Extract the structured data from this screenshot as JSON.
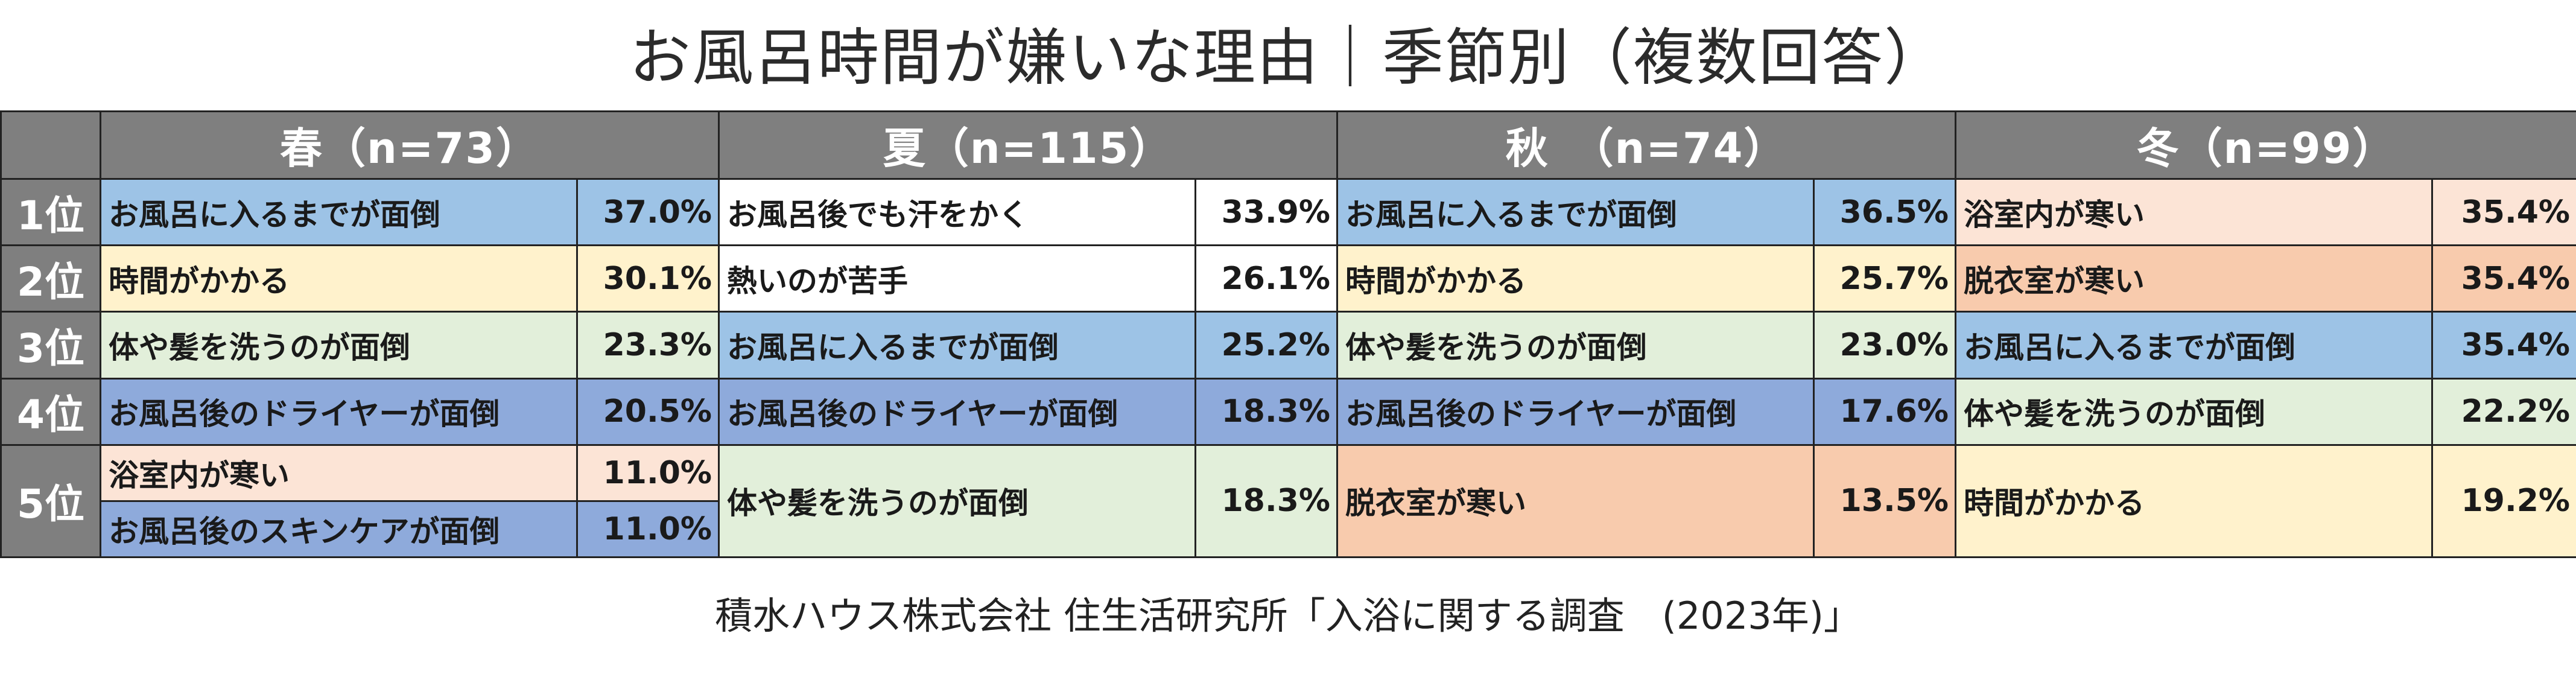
{
  "title": "お風呂時間が嫌いな理由｜季節別（複数回答）",
  "source": "積水ハウス株式会社 住生活研究所「入浴に関する調査　(2023年)」",
  "colors": {
    "header_bg": "#7f7f7f",
    "reason_colors": {
      "お風呂に入るまでが面倒": "#9dc3e6",
      "時間がかかる": "#fff2cc",
      "体や髪を洗うのが面倒": "#e2efda",
      "お風呂後のドライヤーが面倒": "#8eaadb",
      "浴室内が寒い": "#fce4d6",
      "お風呂後のスキンケアが面倒": "#8eaadb",
      "脱衣室が寒い": "#f8cbad",
      "お風呂後でも汗をかく": "#ffffff",
      "熱いのが苦手": "#ffffff"
    }
  },
  "chart_data": {
    "type": "table",
    "rank_labels": [
      "1位",
      "2位",
      "3位",
      "4位",
      "5位"
    ],
    "seasons": [
      {
        "header": "春（n=73）",
        "ranks": [
          [
            {
              "label": "お風呂に入るまでが面倒",
              "value": "37.0%"
            }
          ],
          [
            {
              "label": "時間がかかる",
              "value": "30.1%"
            }
          ],
          [
            {
              "label": "体や髪を洗うのが面倒",
              "value": "23.3%"
            }
          ],
          [
            {
              "label": "お風呂後のドライヤーが面倒",
              "value": "20.5%"
            }
          ],
          [
            {
              "label": "浴室内が寒い",
              "value": "11.0%"
            },
            {
              "label": "お風呂後のスキンケアが面倒",
              "value": "11.0%"
            }
          ]
        ]
      },
      {
        "header": "夏（n=115）",
        "ranks": [
          [
            {
              "label": "お風呂後でも汗をかく",
              "value": "33.9%"
            }
          ],
          [
            {
              "label": "熱いのが苦手",
              "value": "26.1%"
            }
          ],
          [
            {
              "label": "お風呂に入るまでが面倒",
              "value": "25.2%"
            }
          ],
          [
            {
              "label": "お風呂後のドライヤーが面倒",
              "value": "18.3%"
            }
          ],
          [
            {
              "label": "体や髪を洗うのが面倒",
              "value": "18.3%"
            }
          ]
        ]
      },
      {
        "header": "秋　（n=74）",
        "ranks": [
          [
            {
              "label": "お風呂に入るまでが面倒",
              "value": "36.5%"
            }
          ],
          [
            {
              "label": "時間がかかる",
              "value": "25.7%"
            }
          ],
          [
            {
              "label": "体や髪を洗うのが面倒",
              "value": "23.0%"
            }
          ],
          [
            {
              "label": "お風呂後のドライヤーが面倒",
              "value": "17.6%"
            }
          ],
          [
            {
              "label": "脱衣室が寒い",
              "value": "13.5%"
            }
          ]
        ]
      },
      {
        "header": "冬（n=99）",
        "ranks": [
          [
            {
              "label": "浴室内が寒い",
              "value": "35.4%"
            }
          ],
          [
            {
              "label": "脱衣室が寒い",
              "value": "35.4%"
            }
          ],
          [
            {
              "label": "お風呂に入るまでが面倒",
              "value": "35.4%"
            }
          ],
          [
            {
              "label": "体や髪を洗うのが面倒",
              "value": "22.2%"
            }
          ],
          [
            {
              "label": "時間がかかる",
              "value": "19.2%"
            }
          ]
        ]
      }
    ]
  }
}
